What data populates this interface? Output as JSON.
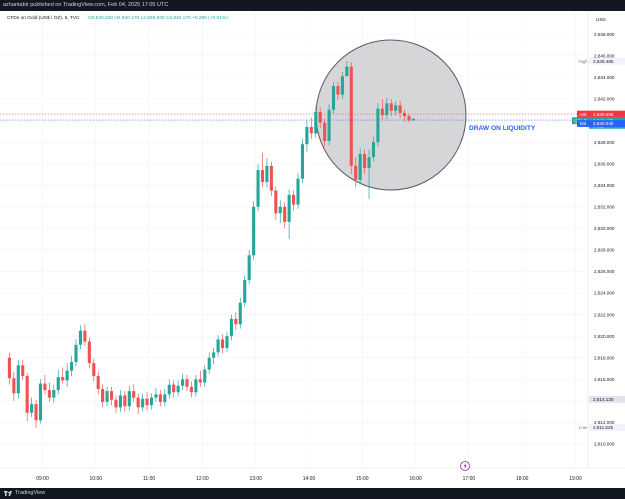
{
  "header": {
    "publisher_line": "azhantabir published on TradingView.com, Feb 04, 2025 17:05 UTC"
  },
  "legend": {
    "symbol": "CFDs on Gold (US$ / OZ), 5, TVC",
    "ohlc": "O2,840.030  H2,840.170  L2,839.930  C2,840.170  +0.295 (+0.01%)"
  },
  "footer": {
    "brand": "TradingView"
  },
  "chart_data": {
    "type": "candlestick",
    "title": "CFDs on Gold (US$ / OZ), 5, TVC",
    "currency": "USD",
    "timeframe": "5",
    "x_ticks": [
      "09:00",
      "10:00",
      "11:00",
      "12:00",
      "13:00",
      "14:00",
      "15:00",
      "16:00",
      "17:00",
      "18:00",
      "19:00"
    ],
    "y_ticks": [
      2810,
      2812,
      2814,
      2816,
      2818,
      2820,
      2822,
      2824,
      2826,
      2828,
      2830,
      2832,
      2834,
      2836,
      2838,
      2840,
      2842,
      2844,
      2846,
      2848
    ],
    "y_tick_labels": [
      "2,810.000",
      "2,812.000",
      "2,814.000",
      "2,816.000",
      "2,818.000",
      "2,820.000",
      "2,822.000",
      "2,824.000",
      "2,826.000",
      "2,828.000",
      "2,830.000",
      "2,832.000",
      "2,834.000",
      "2,836.000",
      "2,838.000",
      "2,840.000",
      "2,842.000",
      "2,844.000",
      "2,846.000",
      "2,848.000"
    ],
    "ylim": [
      2808.7,
      2849.6
    ],
    "price_labels": {
      "high": {
        "label": "High",
        "value": "2,845.480"
      },
      "ask": {
        "label": "Ask",
        "value": "2,840.595"
      },
      "last": {
        "label": "GOLD",
        "value": "2,840.170",
        "countdown": "04:56"
      },
      "bid": {
        "label": "Bid",
        "value": "2,840.045"
      },
      "mark": {
        "value": "2,814.130"
      },
      "low": {
        "label": "Low",
        "value": "2,811.525"
      }
    },
    "levels": {
      "high": 2845.48,
      "ask": 2840.595,
      "bid": 2840.045,
      "low": 2811.525
    },
    "annotation": {
      "text": "DRAW ON LIQUIDITY"
    },
    "colors": {
      "up": "#26a69a",
      "down": "#ef5350",
      "ask": "#f23645",
      "bid": "#2962ff",
      "annotation": "#2962ff",
      "circle_fill": "#cfcfd1",
      "circle_stroke": "#595c66"
    },
    "candles": [
      {
        "t": "08:25",
        "o": 2818.0,
        "h": 2818.5,
        "l": 2815.5,
        "c": 2816.1
      },
      {
        "t": "08:30",
        "o": 2816.1,
        "h": 2816.7,
        "l": 2814.0,
        "c": 2814.7
      },
      {
        "t": "08:35",
        "o": 2814.7,
        "h": 2817.8,
        "l": 2814.2,
        "c": 2817.3
      },
      {
        "t": "08:40",
        "o": 2817.3,
        "h": 2817.8,
        "l": 2815.9,
        "c": 2816.3
      },
      {
        "t": "08:45",
        "o": 2816.3,
        "h": 2816.6,
        "l": 2812.1,
        "c": 2812.9
      },
      {
        "t": "08:50",
        "o": 2812.9,
        "h": 2814.3,
        "l": 2812.5,
        "c": 2813.7
      },
      {
        "t": "08:55",
        "o": 2813.7,
        "h": 2814.1,
        "l": 2811.5,
        "c": 2812.2
      },
      {
        "t": "09:00",
        "o": 2812.2,
        "h": 2816.0,
        "l": 2811.9,
        "c": 2815.6
      },
      {
        "t": "09:05",
        "o": 2815.6,
        "h": 2816.4,
        "l": 2814.6,
        "c": 2815.0
      },
      {
        "t": "09:10",
        "o": 2815.0,
        "h": 2815.7,
        "l": 2813.9,
        "c": 2814.3
      },
      {
        "t": "09:15",
        "o": 2814.3,
        "h": 2815.5,
        "l": 2813.8,
        "c": 2815.0
      },
      {
        "t": "09:20",
        "o": 2815.0,
        "h": 2816.9,
        "l": 2814.6,
        "c": 2816.2
      },
      {
        "t": "09:25",
        "o": 2816.2,
        "h": 2817.1,
        "l": 2815.6,
        "c": 2815.9
      },
      {
        "t": "09:30",
        "o": 2815.9,
        "h": 2817.5,
        "l": 2815.3,
        "c": 2816.8
      },
      {
        "t": "09:35",
        "o": 2816.8,
        "h": 2818.2,
        "l": 2816.3,
        "c": 2817.6
      },
      {
        "t": "09:40",
        "o": 2817.6,
        "h": 2819.7,
        "l": 2817.2,
        "c": 2819.2
      },
      {
        "t": "09:45",
        "o": 2819.2,
        "h": 2821.0,
        "l": 2818.8,
        "c": 2820.5
      },
      {
        "t": "09:50",
        "o": 2820.5,
        "h": 2821.1,
        "l": 2819.1,
        "c": 2819.5
      },
      {
        "t": "09:55",
        "o": 2819.5,
        "h": 2819.9,
        "l": 2817.0,
        "c": 2817.5
      },
      {
        "t": "10:00",
        "o": 2817.5,
        "h": 2817.9,
        "l": 2815.8,
        "c": 2816.3
      },
      {
        "t": "10:05",
        "o": 2816.3,
        "h": 2816.7,
        "l": 2814.6,
        "c": 2815.1
      },
      {
        "t": "10:10",
        "o": 2815.1,
        "h": 2815.5,
        "l": 2813.4,
        "c": 2813.9
      },
      {
        "t": "10:15",
        "o": 2813.9,
        "h": 2815.3,
        "l": 2813.5,
        "c": 2814.9
      },
      {
        "t": "10:20",
        "o": 2814.9,
        "h": 2815.3,
        "l": 2813.6,
        "c": 2814.1
      },
      {
        "t": "10:25",
        "o": 2814.1,
        "h": 2814.5,
        "l": 2812.9,
        "c": 2813.4
      },
      {
        "t": "10:30",
        "o": 2813.4,
        "h": 2815.0,
        "l": 2813.0,
        "c": 2814.5
      },
      {
        "t": "10:35",
        "o": 2814.5,
        "h": 2814.9,
        "l": 2813.0,
        "c": 2813.5
      },
      {
        "t": "10:40",
        "o": 2813.5,
        "h": 2815.4,
        "l": 2813.1,
        "c": 2814.9
      },
      {
        "t": "10:45",
        "o": 2814.9,
        "h": 2815.5,
        "l": 2813.9,
        "c": 2814.3
      },
      {
        "t": "10:50",
        "o": 2814.3,
        "h": 2814.7,
        "l": 2812.8,
        "c": 2813.4
      },
      {
        "t": "10:55",
        "o": 2813.4,
        "h": 2814.6,
        "l": 2813.0,
        "c": 2814.2
      },
      {
        "t": "11:00",
        "o": 2814.2,
        "h": 2814.8,
        "l": 2813.1,
        "c": 2813.6
      },
      {
        "t": "11:05",
        "o": 2813.6,
        "h": 2814.7,
        "l": 2813.2,
        "c": 2814.3
      },
      {
        "t": "11:10",
        "o": 2814.3,
        "h": 2815.2,
        "l": 2813.9,
        "c": 2814.6
      },
      {
        "t": "11:15",
        "o": 2814.6,
        "h": 2815.0,
        "l": 2813.5,
        "c": 2813.9
      },
      {
        "t": "11:20",
        "o": 2813.9,
        "h": 2815.1,
        "l": 2813.5,
        "c": 2814.6
      },
      {
        "t": "11:25",
        "o": 2814.6,
        "h": 2816.0,
        "l": 2814.2,
        "c": 2815.5
      },
      {
        "t": "11:30",
        "o": 2815.5,
        "h": 2815.9,
        "l": 2814.3,
        "c": 2814.8
      },
      {
        "t": "11:35",
        "o": 2814.8,
        "h": 2815.9,
        "l": 2814.4,
        "c": 2815.4
      },
      {
        "t": "11:40",
        "o": 2815.4,
        "h": 2816.5,
        "l": 2815.0,
        "c": 2816.0
      },
      {
        "t": "11:45",
        "o": 2816.0,
        "h": 2816.4,
        "l": 2814.9,
        "c": 2815.3
      },
      {
        "t": "11:50",
        "o": 2815.3,
        "h": 2815.8,
        "l": 2814.3,
        "c": 2814.8
      },
      {
        "t": "11:55",
        "o": 2814.8,
        "h": 2816.4,
        "l": 2814.4,
        "c": 2816.0
      },
      {
        "t": "12:00",
        "o": 2816.0,
        "h": 2816.8,
        "l": 2815.3,
        "c": 2815.7
      },
      {
        "t": "12:05",
        "o": 2815.7,
        "h": 2817.3,
        "l": 2815.3,
        "c": 2816.9
      },
      {
        "t": "12:10",
        "o": 2816.9,
        "h": 2818.5,
        "l": 2816.5,
        "c": 2818.0
      },
      {
        "t": "12:15",
        "o": 2818.0,
        "h": 2818.9,
        "l": 2817.4,
        "c": 2818.5
      },
      {
        "t": "12:20",
        "o": 2818.5,
        "h": 2820.1,
        "l": 2818.1,
        "c": 2819.7
      },
      {
        "t": "12:25",
        "o": 2819.7,
        "h": 2820.2,
        "l": 2818.4,
        "c": 2818.9
      },
      {
        "t": "12:30",
        "o": 2818.9,
        "h": 2820.4,
        "l": 2818.5,
        "c": 2820.0
      },
      {
        "t": "12:35",
        "o": 2820.0,
        "h": 2822.0,
        "l": 2819.6,
        "c": 2821.6
      },
      {
        "t": "12:40",
        "o": 2821.6,
        "h": 2822.2,
        "l": 2820.6,
        "c": 2821.1
      },
      {
        "t": "12:45",
        "o": 2821.1,
        "h": 2823.6,
        "l": 2820.7,
        "c": 2823.1
      },
      {
        "t": "12:50",
        "o": 2823.1,
        "h": 2825.6,
        "l": 2822.7,
        "c": 2825.2
      },
      {
        "t": "12:55",
        "o": 2825.2,
        "h": 2828.0,
        "l": 2824.8,
        "c": 2827.5
      },
      {
        "t": "13:00",
        "o": 2827.5,
        "h": 2832.5,
        "l": 2827.1,
        "c": 2832.0
      },
      {
        "t": "13:05",
        "o": 2832.0,
        "h": 2836.0,
        "l": 2831.6,
        "c": 2835.4
      },
      {
        "t": "13:10",
        "o": 2835.4,
        "h": 2837.0,
        "l": 2833.8,
        "c": 2834.3
      },
      {
        "t": "13:15",
        "o": 2834.3,
        "h": 2836.5,
        "l": 2833.8,
        "c": 2835.8
      },
      {
        "t": "13:20",
        "o": 2835.8,
        "h": 2836.2,
        "l": 2833.0,
        "c": 2833.5
      },
      {
        "t": "13:25",
        "o": 2833.5,
        "h": 2833.9,
        "l": 2830.8,
        "c": 2831.4
      },
      {
        "t": "13:30",
        "o": 2831.4,
        "h": 2832.6,
        "l": 2830.5,
        "c": 2832.0
      },
      {
        "t": "13:35",
        "o": 2832.0,
        "h": 2832.4,
        "l": 2830.0,
        "c": 2830.6
      },
      {
        "t": "13:40",
        "o": 2830.6,
        "h": 2833.6,
        "l": 2829.0,
        "c": 2833.1
      },
      {
        "t": "13:45",
        "o": 2833.1,
        "h": 2833.5,
        "l": 2831.7,
        "c": 2832.2
      },
      {
        "t": "13:50",
        "o": 2832.2,
        "h": 2835.1,
        "l": 2831.8,
        "c": 2834.6
      },
      {
        "t": "13:55",
        "o": 2834.6,
        "h": 2838.3,
        "l": 2834.2,
        "c": 2837.8
      },
      {
        "t": "14:00",
        "o": 2837.8,
        "h": 2840.0,
        "l": 2837.1,
        "c": 2839.4
      },
      {
        "t": "14:05",
        "o": 2839.4,
        "h": 2840.3,
        "l": 2838.3,
        "c": 2838.8
      },
      {
        "t": "14:10",
        "o": 2838.8,
        "h": 2841.3,
        "l": 2838.4,
        "c": 2840.8
      },
      {
        "t": "14:15",
        "o": 2840.8,
        "h": 2841.2,
        "l": 2839.3,
        "c": 2839.8
      },
      {
        "t": "14:20",
        "o": 2839.8,
        "h": 2840.2,
        "l": 2837.6,
        "c": 2838.1
      },
      {
        "t": "14:25",
        "o": 2838.1,
        "h": 2841.5,
        "l": 2837.7,
        "c": 2841.0
      },
      {
        "t": "14:30",
        "o": 2841.0,
        "h": 2843.6,
        "l": 2840.6,
        "c": 2843.2
      },
      {
        "t": "14:35",
        "o": 2843.2,
        "h": 2843.6,
        "l": 2841.9,
        "c": 2842.4
      },
      {
        "t": "14:40",
        "o": 2842.4,
        "h": 2844.5,
        "l": 2842.0,
        "c": 2844.1
      },
      {
        "t": "14:45",
        "o": 2844.1,
        "h": 2845.5,
        "l": 2844.2,
        "c": 2845.0
      },
      {
        "t": "14:50",
        "o": 2845.0,
        "h": 2845.4,
        "l": 2835.0,
        "c": 2835.8
      },
      {
        "t": "14:55",
        "o": 2835.8,
        "h": 2836.6,
        "l": 2833.8,
        "c": 2834.5
      },
      {
        "t": "15:00",
        "o": 2834.5,
        "h": 2837.4,
        "l": 2834.1,
        "c": 2836.9
      },
      {
        "t": "15:05",
        "o": 2836.9,
        "h": 2837.3,
        "l": 2835.1,
        "c": 2835.6
      },
      {
        "t": "15:10",
        "o": 2835.6,
        "h": 2837.3,
        "l": 2832.7,
        "c": 2836.6
      },
      {
        "t": "15:15",
        "o": 2836.6,
        "h": 2838.5,
        "l": 2836.2,
        "c": 2838.0
      },
      {
        "t": "15:20",
        "o": 2838.0,
        "h": 2841.6,
        "l": 2837.6,
        "c": 2841.1
      },
      {
        "t": "15:25",
        "o": 2841.1,
        "h": 2842.0,
        "l": 2840.0,
        "c": 2840.5
      },
      {
        "t": "15:30",
        "o": 2840.5,
        "h": 2842.1,
        "l": 2840.1,
        "c": 2841.6
      },
      {
        "t": "15:35",
        "o": 2841.6,
        "h": 2842.0,
        "l": 2840.4,
        "c": 2840.9
      },
      {
        "t": "15:40",
        "o": 2840.9,
        "h": 2841.8,
        "l": 2840.5,
        "c": 2841.4
      },
      {
        "t": "15:45",
        "o": 2841.4,
        "h": 2841.8,
        "l": 2840.2,
        "c": 2840.7
      },
      {
        "t": "15:50",
        "o": 2840.7,
        "h": 2841.0,
        "l": 2839.9,
        "c": 2840.4
      },
      {
        "t": "15:55",
        "o": 2840.4,
        "h": 2840.6,
        "l": 2839.8,
        "c": 2840.0
      },
      {
        "t": "16:00",
        "o": 2840.03,
        "h": 2840.17,
        "l": 2839.93,
        "c": 2840.17
      }
    ]
  }
}
